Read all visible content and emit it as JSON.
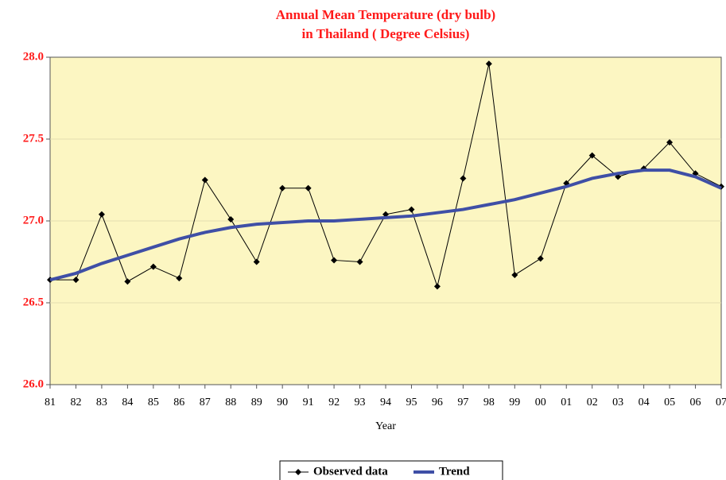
{
  "chart_data": {
    "type": "line",
    "title": [
      "Annual Mean Temperature (dry bulb)",
      "in Thailand ( Degree Celsius)"
    ],
    "x_label": "Year",
    "categories": [
      "81",
      "82",
      "83",
      "84",
      "85",
      "86",
      "87",
      "88",
      "89",
      "90",
      "91",
      "92",
      "93",
      "94",
      "95",
      "96",
      "97",
      "98",
      "99",
      "00",
      "01",
      "02",
      "03",
      "04",
      "05",
      "06",
      "07"
    ],
    "series": [
      {
        "name": "Observed data",
        "color": "#000000",
        "marker": "diamond",
        "values": [
          26.64,
          26.64,
          27.04,
          26.63,
          26.72,
          26.65,
          27.25,
          27.01,
          26.75,
          27.2,
          27.2,
          26.76,
          26.75,
          27.04,
          27.07,
          26.6,
          27.26,
          27.96,
          26.67,
          26.77,
          27.23,
          27.4,
          27.27,
          27.32,
          27.48,
          27.29,
          27.21
        ]
      },
      {
        "name": "Trend",
        "color": "#3f4fa6",
        "values": [
          26.64,
          26.68,
          26.74,
          26.79,
          26.84,
          26.89,
          26.93,
          26.96,
          26.98,
          26.99,
          27.0,
          27.0,
          27.01,
          27.02,
          27.03,
          27.05,
          27.07,
          27.1,
          27.13,
          27.17,
          27.21,
          27.26,
          27.29,
          27.31,
          27.31,
          27.27,
          27.2
        ]
      }
    ],
    "ylim": [
      26,
      28
    ],
    "yticks": [
      {
        "value": 26,
        "label": "26.0"
      },
      {
        "value": 26.5,
        "label": "26.5"
      },
      {
        "value": 27,
        "label": "27.0"
      },
      {
        "value": 27.5,
        "label": "27.5"
      },
      {
        "value": 28,
        "label": "28.0"
      }
    ],
    "grid": true,
    "legend": "bottom"
  }
}
